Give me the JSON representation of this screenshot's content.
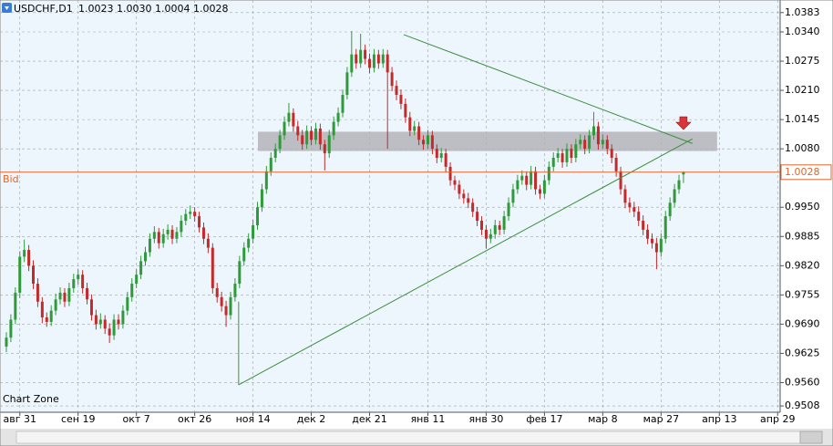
{
  "chart_data": {
    "type": "candlestick",
    "symbol": "USDCHF,D1",
    "ohlc_labels": [
      "1.0023",
      "1.0030",
      "1.0004",
      "1.0028"
    ],
    "corner_label": "Chart Zone",
    "bid_name": "Bid",
    "bid": 1.0028,
    "up_color": "#2f9a3a",
    "down_color": "#c42a2a",
    "line_color": "#3c8f3c",
    "bid_color": "#e0662a",
    "zone_color": "#b4b4b8",
    "arrow_color": "#d8363c",
    "grid": true,
    "xlim": [
      -1.42,
      172.56
    ],
    "ylim": [
      0.9494,
      1.0411
    ],
    "xticks": [
      {
        "value": 3,
        "label": "авг 31"
      },
      {
        "value": 16,
        "label": "сен 19"
      },
      {
        "value": 29,
        "label": "окт 7"
      },
      {
        "value": 42,
        "label": "окт 26"
      },
      {
        "value": 55,
        "label": "ноя 14"
      },
      {
        "value": 68,
        "label": "дек 2"
      },
      {
        "value": 81,
        "label": "дек 21"
      },
      {
        "value": 94,
        "label": "янв 11"
      },
      {
        "value": 107,
        "label": "янв 30"
      },
      {
        "value": 120,
        "label": "фев 17"
      },
      {
        "value": 133,
        "label": "мар 8"
      },
      {
        "value": 146,
        "label": "мар 27"
      },
      {
        "value": 159,
        "label": "апр 13"
      },
      {
        "value": 172,
        "label": "апр 29"
      }
    ],
    "yticks": [
      1.0383,
      {
        "value": 1.034,
        "label": "1.0340"
      },
      1.0275,
      {
        "value": 1.021,
        "label": "1.0210"
      },
      1.0145,
      {
        "value": 1.008,
        "label": "1.0080"
      },
      {
        "value": 0.995,
        "label": "0.9950"
      },
      0.9885,
      {
        "value": 0.982,
        "label": "0.9820"
      },
      0.9755,
      {
        "value": 0.969,
        "label": "0.9690"
      },
      0.9625,
      {
        "value": 0.956,
        "label": "0.9560"
      },
      0.9508
    ],
    "trendlines": [
      [
        [
          51.8,
          0.9555
        ],
        [
          51.8,
          0.974
        ]
      ],
      [
        [
          51.8,
          0.9555
        ],
        [
          153,
          1.0102
        ]
      ],
      [
        [
          88.6,
          1.0334
        ],
        [
          153,
          1.0092
        ]
      ]
    ],
    "zone": {
      "x": [
        56.1,
        158.5
      ],
      "y": [
        1.0075,
        1.0118
      ]
    },
    "arrow": [
      151,
      1.0133
    ],
    "candles": [
      [
        0.964,
        0.9672,
        0.9628,
        0.966
      ],
      [
        0.966,
        0.9712,
        0.965,
        0.97
      ],
      [
        0.97,
        0.9772,
        0.969,
        0.976
      ],
      [
        0.976,
        0.9852,
        0.9748,
        0.984
      ],
      [
        0.984,
        0.9878,
        0.9828,
        0.9855
      ],
      [
        0.9855,
        0.9866,
        0.9808,
        0.982
      ],
      [
        0.982,
        0.9832,
        0.9768,
        0.978
      ],
      [
        0.978,
        0.9792,
        0.9728,
        0.974
      ],
      [
        0.974,
        0.975,
        0.9692,
        0.9705
      ],
      [
        0.9705,
        0.9716,
        0.9684,
        0.9695
      ],
      [
        0.9695,
        0.9732,
        0.9686,
        0.972
      ],
      [
        0.972,
        0.9758,
        0.971,
        0.9745
      ],
      [
        0.9745,
        0.9772,
        0.9734,
        0.976
      ],
      [
        0.976,
        0.977,
        0.9728,
        0.974
      ],
      [
        0.974,
        0.9782,
        0.973,
        0.977
      ],
      [
        0.977,
        0.9802,
        0.976,
        0.979
      ],
      [
        0.979,
        0.9812,
        0.9778,
        0.98
      ],
      [
        0.98,
        0.981,
        0.9758,
        0.977
      ],
      [
        0.977,
        0.9782,
        0.9734,
        0.9745
      ],
      [
        0.9745,
        0.9756,
        0.9698,
        0.971
      ],
      [
        0.971,
        0.9722,
        0.9678,
        0.969
      ],
      [
        0.969,
        0.9714,
        0.968,
        0.97
      ],
      [
        0.97,
        0.971,
        0.9668,
        0.968
      ],
      [
        0.968,
        0.9692,
        0.9648,
        0.9665
      ],
      [
        0.9665,
        0.9712,
        0.9655,
        0.97
      ],
      [
        0.97,
        0.9712,
        0.9678,
        0.969
      ],
      [
        0.969,
        0.9732,
        0.968,
        0.972
      ],
      [
        0.972,
        0.9762,
        0.971,
        0.975
      ],
      [
        0.975,
        0.9792,
        0.974,
        0.978
      ],
      [
        0.978,
        0.9812,
        0.977,
        0.98
      ],
      [
        0.98,
        0.9842,
        0.979,
        0.983
      ],
      [
        0.983,
        0.9862,
        0.982,
        0.985
      ],
      [
        0.985,
        0.9892,
        0.984,
        0.988
      ],
      [
        0.988,
        0.9908,
        0.987,
        0.9895
      ],
      [
        0.9895,
        0.9904,
        0.9858,
        0.987
      ],
      [
        0.987,
        0.9902,
        0.986,
        0.989
      ],
      [
        0.989,
        0.9912,
        0.9878,
        0.99
      ],
      [
        0.99,
        0.991,
        0.9868,
        0.988
      ],
      [
        0.988,
        0.9906,
        0.987,
        0.9895
      ],
      [
        0.9895,
        0.9932,
        0.9884,
        0.992
      ],
      [
        0.992,
        0.9946,
        0.991,
        0.9935
      ],
      [
        0.9935,
        0.9954,
        0.9924,
        0.994
      ],
      [
        0.994,
        0.995,
        0.9918,
        0.993
      ],
      [
        0.993,
        0.994,
        0.9894,
        0.9905
      ],
      [
        0.9905,
        0.9916,
        0.9868,
        0.988
      ],
      [
        0.988,
        0.9892,
        0.9848,
        0.986
      ],
      [
        0.986,
        0.987,
        0.9758,
        0.977
      ],
      [
        0.977,
        0.9782,
        0.9738,
        0.975
      ],
      [
        0.975,
        0.9762,
        0.9718,
        0.973
      ],
      [
        0.973,
        0.9742,
        0.9684,
        0.971
      ],
      [
        0.971,
        0.9762,
        0.97,
        0.975
      ],
      [
        0.975,
        0.9792,
        0.974,
        0.978
      ],
      [
        0.978,
        0.9842,
        0.977,
        0.983
      ],
      [
        0.983,
        0.9872,
        0.982,
        0.986
      ],
      [
        0.986,
        0.9892,
        0.985,
        0.988
      ],
      [
        0.988,
        0.9922,
        0.987,
        0.991
      ],
      [
        0.991,
        0.9962,
        0.99,
        0.995
      ],
      [
        0.995,
        1.0002,
        0.994,
        0.999
      ],
      [
        0.999,
        1.0042,
        0.998,
        1.003
      ],
      [
        1.003,
        1.0072,
        1.002,
        1.006
      ],
      [
        1.006,
        1.0092,
        1.005,
        1.008
      ],
      [
        1.008,
        1.0122,
        1.007,
        1.011
      ],
      [
        1.011,
        1.0152,
        1.01,
        1.014
      ],
      [
        1.014,
        1.0182,
        1.013,
        1.016
      ],
      [
        1.016,
        1.017,
        1.0118,
        1.013
      ],
      [
        1.013,
        1.0142,
        1.0098,
        1.011
      ],
      [
        1.011,
        1.0122,
        1.0078,
        1.009
      ],
      [
        1.009,
        1.0132,
        1.008,
        1.012
      ],
      [
        1.012,
        1.013,
        1.0088,
        1.01
      ],
      [
        1.01,
        1.0138,
        1.009,
        1.0125
      ],
      [
        1.0125,
        1.0136,
        1.0078,
        1.009
      ],
      [
        1.009,
        1.01,
        1.0032,
        1.007
      ],
      [
        1.007,
        1.0122,
        1.006,
        1.011
      ],
      [
        1.011,
        1.0152,
        1.01,
        1.014
      ],
      [
        1.014,
        1.0172,
        1.013,
        1.016
      ],
      [
        1.016,
        1.0212,
        1.015,
        1.02
      ],
      [
        1.02,
        1.0262,
        1.019,
        1.025
      ],
      [
        1.025,
        1.0342,
        1.024,
        1.029
      ],
      [
        1.029,
        1.0302,
        1.0258,
        1.027
      ],
      [
        1.027,
        1.0336,
        1.026,
        1.03
      ],
      [
        1.03,
        1.0312,
        1.0268,
        1.028
      ],
      [
        1.028,
        1.0292,
        1.0248,
        1.026
      ],
      [
        1.026,
        1.0302,
        1.025,
        1.029
      ],
      [
        1.029,
        1.03,
        1.0258,
        1.027
      ],
      [
        1.027,
        1.0302,
        1.026,
        1.029
      ],
      [
        1.029,
        1.03,
        1.008,
        1.025
      ],
      [
        1.025,
        1.0262,
        1.0208,
        1.022
      ],
      [
        1.022,
        1.0232,
        1.0188,
        1.02
      ],
      [
        1.02,
        1.0212,
        1.0168,
        1.018
      ],
      [
        1.018,
        1.0192,
        1.0138,
        1.015
      ],
      [
        1.015,
        1.0162,
        1.0108,
        1.012
      ],
      [
        1.012,
        1.0142,
        1.011,
        1.013
      ],
      [
        1.013,
        1.014,
        1.0088,
        1.01
      ],
      [
        1.01,
        1.011,
        1.0078,
        1.009
      ],
      [
        1.009,
        1.0122,
        1.008,
        1.011
      ],
      [
        1.011,
        1.012,
        1.0068,
        1.008
      ],
      [
        1.008,
        1.009,
        1.0048,
        1.006
      ],
      [
        1.006,
        1.0082,
        1.005,
        1.007
      ],
      [
        1.007,
        1.008,
        1.0028,
        1.004
      ],
      [
        1.004,
        1.005,
        0.9998,
        1.001
      ],
      [
        1.001,
        1.002,
        0.9988,
        1.0
      ],
      [
        1.0,
        1.001,
        0.9968,
        0.998
      ],
      [
        0.998,
        0.999,
        0.9958,
        0.997
      ],
      [
        0.997,
        0.9982,
        0.9948,
        0.996
      ],
      [
        0.996,
        0.997,
        0.9928,
        0.994
      ],
      [
        0.994,
        0.995,
        0.9908,
        0.992
      ],
      [
        0.992,
        0.993,
        0.9888,
        0.99
      ],
      [
        0.99,
        0.991,
        0.9858,
        0.988
      ],
      [
        0.988,
        0.9902,
        0.987,
        0.989
      ],
      [
        0.989,
        0.9922,
        0.988,
        0.991
      ],
      [
        0.991,
        0.992,
        0.9888,
        0.99
      ],
      [
        0.99,
        0.9942,
        0.989,
        0.993
      ],
      [
        0.993,
        0.9972,
        0.992,
        0.996
      ],
      [
        0.996,
        1.0002,
        0.995,
        0.999
      ],
      [
        0.999,
        1.0022,
        0.998,
        1.001
      ],
      [
        1.001,
        1.0032,
        1.0,
        1.002
      ],
      [
        1.002,
        1.003,
        0.9988,
        1.0
      ],
      [
        1.0,
        1.0042,
        0.999,
        1.003
      ],
      [
        1.003,
        1.004,
        0.9978,
        0.999
      ],
      [
        0.999,
        1.0,
        0.9968,
        0.998
      ],
      [
        0.998,
        1.0022,
        0.997,
        1.001
      ],
      [
        1.001,
        1.0052,
        1.0,
        1.004
      ],
      [
        1.004,
        1.0072,
        1.003,
        1.006
      ],
      [
        1.006,
        1.0082,
        1.005,
        1.007
      ],
      [
        1.007,
        1.008,
        1.0038,
        1.005
      ],
      [
        1.005,
        1.0092,
        1.004,
        1.008
      ],
      [
        1.008,
        1.009,
        1.0048,
        1.006
      ],
      [
        1.006,
        1.0102,
        1.005,
        1.009
      ],
      [
        1.009,
        1.0112,
        1.008,
        1.01
      ],
      [
        1.01,
        1.011,
        1.0068,
        1.008
      ],
      [
        1.008,
        1.0122,
        1.007,
        1.011
      ],
      [
        1.011,
        1.0162,
        1.01,
        1.013
      ],
      [
        1.013,
        1.014,
        1.0078,
        1.009
      ],
      [
        1.009,
        1.0112,
        1.008,
        1.01
      ],
      [
        1.01,
        1.011,
        1.0068,
        1.008
      ],
      [
        1.008,
        1.009,
        1.0048,
        1.006
      ],
      [
        1.006,
        1.007,
        1.0018,
        1.003
      ],
      [
        1.003,
        1.004,
        0.9978,
        0.999
      ],
      [
        0.999,
        1.0,
        0.9948,
        0.996
      ],
      [
        0.996,
        0.9972,
        0.9938,
        0.995
      ],
      [
        0.995,
        0.9962,
        0.9928,
        0.994
      ],
      [
        0.994,
        0.9952,
        0.9908,
        0.992
      ],
      [
        0.992,
        0.9932,
        0.9888,
        0.99
      ],
      [
        0.99,
        0.9912,
        0.9868,
        0.988
      ],
      [
        0.988,
        0.9892,
        0.9858,
        0.987
      ],
      [
        0.987,
        0.9882,
        0.9812,
        0.985
      ],
      [
        0.985,
        0.9892,
        0.984,
        0.988
      ],
      [
        0.988,
        0.9942,
        0.987,
        0.993
      ],
      [
        0.993,
        0.9972,
        0.992,
        0.996
      ],
      [
        0.996,
        1.0002,
        0.995,
        0.999
      ],
      [
        0.999,
        1.0022,
        0.998,
        1.001
      ],
      [
        1.0023,
        1.003,
        1.0004,
        1.0028
      ]
    ]
  }
}
